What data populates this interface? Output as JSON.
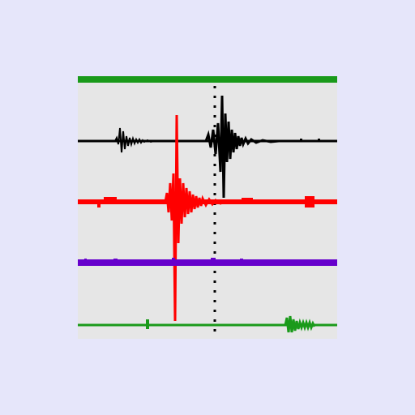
{
  "app_icon": {
    "name": "seismogram",
    "colors": {
      "background": "#e6e6fa",
      "panel": "#e6e6e6",
      "top_bar": "#1a9a1a",
      "trace_1": "#000000",
      "trace_2": "#ff0000",
      "trace_3": "#6600cc",
      "trace_4": "#1a9a1a",
      "marker": "#000000"
    },
    "traces": [
      {
        "name": "trace-black",
        "color_key": "trace_1"
      },
      {
        "name": "trace-red",
        "color_key": "trace_2"
      },
      {
        "name": "trace-purple",
        "color_key": "trace_3"
      },
      {
        "name": "trace-green",
        "color_key": "trace_4"
      }
    ]
  }
}
